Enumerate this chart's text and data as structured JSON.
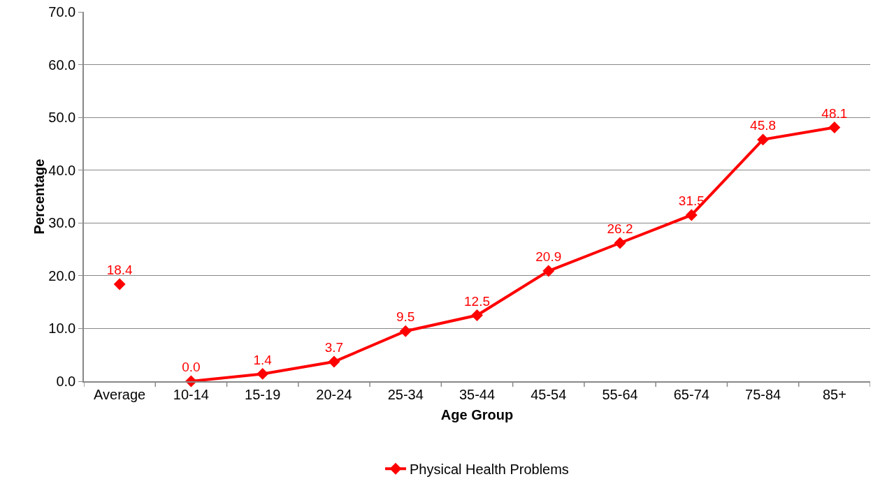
{
  "chart_data": {
    "type": "line",
    "xlabel": "Age Group",
    "ylabel": "Percentage",
    "categories": [
      "Average",
      "10-14",
      "15-19",
      "20-24",
      "25-34",
      "35-44",
      "45-54",
      "55-64",
      "65-74",
      "75-84",
      "85+"
    ],
    "series": [
      {
        "name": "Physical Health Problems",
        "color": "#ff0000",
        "values": [
          null,
          0.0,
          1.4,
          3.7,
          9.5,
          12.5,
          20.9,
          26.2,
          31.5,
          45.8,
          48.1
        ],
        "value_labels": [
          null,
          "0.0",
          "1.4",
          "3.7",
          "9.5",
          "12.5",
          "20.9",
          "26.2",
          "31.5",
          "45.8",
          "48.1"
        ]
      },
      {
        "type": "scatter",
        "color": "#ff0000",
        "values": [
          18.4,
          null,
          null,
          null,
          null,
          null,
          null,
          null,
          null,
          null,
          null
        ],
        "value_labels": [
          "18.4",
          null,
          null,
          null,
          null,
          null,
          null,
          null,
          null,
          null,
          null
        ]
      }
    ],
    "ylim": [
      0,
      70
    ],
    "yticks": [
      {
        "value": 0,
        "label": "0.0"
      },
      {
        "value": 10,
        "label": "10.0"
      },
      {
        "value": 20,
        "label": "20.0"
      },
      {
        "value": 30,
        "label": "30.0"
      },
      {
        "value": 40,
        "label": "40.0"
      },
      {
        "value": 50,
        "label": "50.0"
      },
      {
        "value": 60,
        "label": "60.0"
      },
      {
        "value": 70,
        "label": "70.0"
      }
    ],
    "grid": "y",
    "legend": "bottom",
    "marker": "diamond",
    "line_style": "solid"
  }
}
